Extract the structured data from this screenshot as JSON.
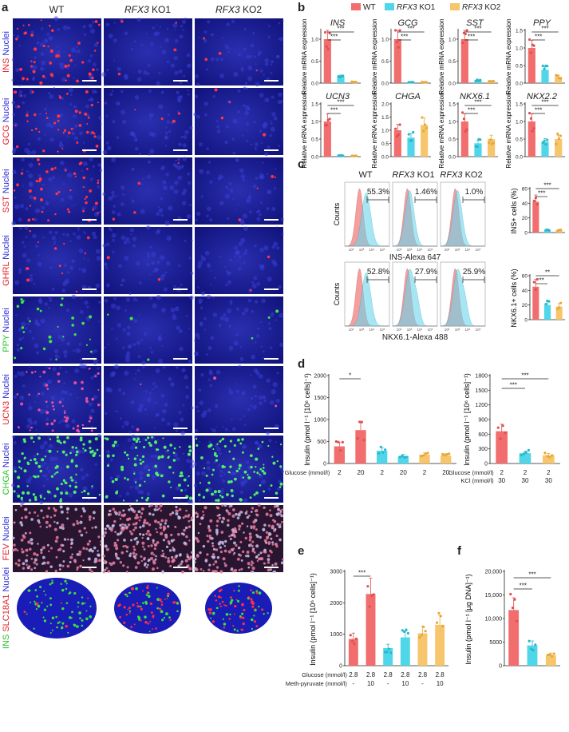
{
  "panel_labels": [
    "a",
    "b",
    "c",
    "d",
    "e",
    "f"
  ],
  "panel_a": {
    "col_headers": [
      "WT",
      "RFX3 KO1",
      "RFX3 KO2"
    ],
    "rows": [
      {
        "red": "INS",
        "green": "",
        "blue": "Nuclei",
        "type": "dots-red"
      },
      {
        "red": "GCG",
        "green": "",
        "blue": "Nuclei",
        "type": "dots-red"
      },
      {
        "red": "SST",
        "green": "",
        "blue": "Nuclei",
        "type": "dots-red"
      },
      {
        "red": "GHRL",
        "green": "",
        "blue": "Nuclei",
        "type": "dots-red-sparse"
      },
      {
        "red": "",
        "green": "PPY",
        "blue": "Nuclei",
        "type": "dots-green"
      },
      {
        "red": "UCN3",
        "green": "",
        "blue": "Nuclei",
        "type": "dots-magenta"
      },
      {
        "red": "",
        "green": "CHGA",
        "blue": "Nuclei",
        "type": "dots-green-all"
      },
      {
        "red": "FEV",
        "green": "",
        "blue": "Nuclei",
        "type": "fev"
      },
      {
        "red": "SLC18A1",
        "green": "INS",
        "blue": "Nuclei",
        "type": "organoid"
      }
    ]
  },
  "legend": [
    {
      "label": "WT",
      "color": "#f26d6d"
    },
    {
      "label": "RFX3 KO1",
      "color": "#4fd6e8"
    },
    {
      "label": "RFX3 KO2",
      "color": "#f7c56b"
    }
  ],
  "panel_b": {
    "ylabel": "Relative mRNA expression",
    "chart_data": [
      {
        "type": "bar",
        "title": "INS",
        "ylim": [
          0,
          1.2
        ],
        "ticks": [
          0,
          0.5,
          1.0
        ],
        "values": [
          1.0,
          0.15,
          0.03
        ],
        "sig": [
          "***",
          "***"
        ]
      },
      {
        "type": "bar",
        "title": "GCG",
        "ylim": [
          0,
          1.2
        ],
        "ticks": [
          0,
          0.5,
          1.0
        ],
        "values": [
          1.0,
          0.02,
          0.02
        ],
        "sig": [
          "***",
          "***"
        ]
      },
      {
        "type": "bar",
        "title": "SST",
        "ylim": [
          0,
          1.2
        ],
        "ticks": [
          0,
          0.5,
          1.0
        ],
        "values": [
          1.0,
          0.06,
          0.04
        ],
        "sig": [
          "***",
          "***"
        ]
      },
      {
        "type": "bar",
        "title": "PPY",
        "ylim": [
          0,
          1.5
        ],
        "ticks": [
          0,
          0.5,
          1.0,
          1.5
        ],
        "values": [
          1.0,
          0.38,
          0.18
        ],
        "sig": [
          "***",
          "***"
        ]
      },
      {
        "type": "bar",
        "title": "UCN3",
        "ylim": [
          0,
          1.5
        ],
        "ticks": [
          0,
          0.5,
          1.0,
          1.5
        ],
        "values": [
          1.0,
          0.03,
          0.02
        ],
        "sig": [
          "***",
          "***"
        ]
      },
      {
        "type": "bar",
        "title": "CHGA",
        "ylim": [
          0,
          2.0
        ],
        "ticks": [
          0,
          0.5,
          1.0,
          1.5,
          2.0
        ],
        "values": [
          1.0,
          0.72,
          1.2
        ],
        "sig": []
      },
      {
        "type": "bar",
        "title": "NKX6.1",
        "ylim": [
          0,
          1.5
        ],
        "ticks": [
          0,
          0.5,
          1.0,
          1.5
        ],
        "values": [
          1.0,
          0.38,
          0.5
        ],
        "sig": [
          "***",
          "***"
        ]
      },
      {
        "type": "bar",
        "title": "NKX2.2",
        "ylim": [
          0,
          1.5
        ],
        "ticks": [
          0,
          0.5,
          1.0,
          1.5
        ],
        "values": [
          1.0,
          0.42,
          0.5
        ],
        "sig": [
          "***",
          "***"
        ]
      }
    ]
  },
  "panel_c": {
    "col_headers": [
      "WT",
      "RFX3 KO1",
      "RFX3 KO2"
    ],
    "flow_rows": [
      {
        "xlabel": "INS-Alexa 647",
        "ylabel": "Counts",
        "percents": [
          "55.3%",
          "1.46%",
          "1.0%"
        ]
      },
      {
        "xlabel": "NKX6.1-Alexa 488",
        "ylabel": "Counts",
        "percents": [
          "52.8%",
          "27.9%",
          "25.9%"
        ]
      }
    ],
    "x_ticks": [
      "10²",
      "10³",
      "10⁴",
      "10⁵"
    ],
    "chart_data": [
      {
        "type": "bar",
        "ylabel": "INS+ cells (%)",
        "ylim": [
          0,
          60
        ],
        "ticks": [
          0,
          20,
          40,
          60
        ],
        "values": [
          42,
          3.5,
          3
        ],
        "sig": [
          "***",
          "***"
        ]
      },
      {
        "type": "bar",
        "ylabel": "NKX6.1+ cells (%)",
        "ylim": [
          0,
          60
        ],
        "ticks": [
          0,
          20,
          40,
          60
        ],
        "values": [
          45,
          20,
          18
        ],
        "sig": [
          "**",
          "**"
        ]
      }
    ]
  },
  "panel_d": {
    "ylabel": "Insulin (pmol l⁻¹ [10⁶ cells]⁻¹)",
    "chart_data": [
      {
        "type": "bar",
        "ylim": [
          0,
          2000
        ],
        "ticks": [
          0,
          500,
          1000,
          1500,
          2000
        ],
        "categories": [
          "2",
          "20",
          "2",
          "20",
          "2",
          "20"
        ],
        "values": [
          390,
          760,
          290,
          170,
          200,
          180
        ],
        "groups": [
          0,
          0,
          1,
          1,
          2,
          2
        ],
        "xrow_label": "Glucose (mmol/l)",
        "sig": [
          "*"
        ]
      },
      {
        "type": "bar",
        "ylim": [
          0,
          1800
        ],
        "ticks": [
          0,
          300,
          600,
          900,
          1200,
          1500,
          1800
        ],
        "categories": [
          "2",
          "2",
          "2"
        ],
        "categories2": [
          "30",
          "30",
          "30"
        ],
        "values": [
          660,
          210,
          170
        ],
        "groups": [
          0,
          1,
          2
        ],
        "xrow_label": "Glucose (mmol/l)",
        "xrow2_label": "KCl (mmol/l)",
        "sig": [
          "***",
          "***"
        ]
      }
    ]
  },
  "panel_e": {
    "ylabel": "Insulin (pmol l⁻¹ [10⁶ cells]⁻¹)",
    "chart_data": {
      "type": "bar",
      "ylim": [
        0,
        3000
      ],
      "ticks": [
        0,
        1000,
        2000,
        3000
      ],
      "categories": [
        "2.8",
        "2.8",
        "2.8",
        "2.8",
        "2.8",
        "2.8"
      ],
      "categories2": [
        "-",
        "10",
        "-",
        "10",
        "-",
        "10"
      ],
      "values": [
        850,
        2280,
        560,
        900,
        1030,
        1300
      ],
      "groups": [
        0,
        0,
        1,
        1,
        2,
        2
      ],
      "xrow_label": "Glucose (mmol/l)",
      "xrow2_label": "Meth-pyruvate (mmol/l)",
      "sig": [
        "***"
      ]
    }
  },
  "panel_f": {
    "ylabel": "Insulin (pmol l⁻¹ [µg DNA]⁻¹)",
    "chart_data": {
      "type": "bar",
      "ylim": [
        0,
        20000
      ],
      "ticks": [
        "0",
        "5000",
        "10,000",
        "15,000",
        "20,000"
      ],
      "tickvals": [
        0,
        5000,
        10000,
        15000,
        20000
      ],
      "values": [
        11800,
        4300,
        2200
      ],
      "groups": [
        0,
        1,
        2
      ],
      "sig": [
        "***",
        "***"
      ]
    }
  }
}
